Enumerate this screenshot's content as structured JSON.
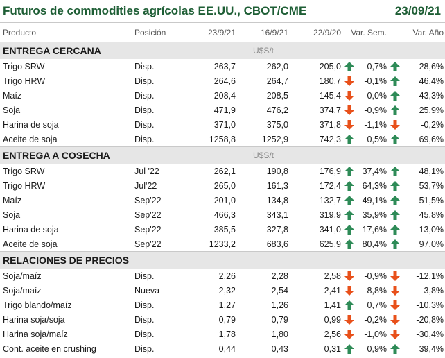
{
  "title": "Futuros de commodities agrícolas EE.UU., CBOT/CME",
  "date": "23/09/21",
  "columns": [
    "Producto",
    "Posición",
    "23/9/21",
    "16/9/21",
    "22/9/20",
    "Var. Sem.",
    "Var. Año"
  ],
  "colors": {
    "title": "#1e5e35",
    "up": "#2e8b57",
    "down": "#e8501a",
    "section_bg": "#e6e6e6"
  },
  "sections": [
    {
      "label": "ENTREGA CERCANA",
      "unit": "U$S/t",
      "rows": [
        {
          "name": "Trigo SRW",
          "pos": "Disp.",
          "v1": "263,7",
          "v2": "262,0",
          "v3": "205,0",
          "a1": "up",
          "wk": "0,7%",
          "a2": "up",
          "yr": "28,6%"
        },
        {
          "name": "Trigo HRW",
          "pos": "Disp.",
          "v1": "264,6",
          "v2": "264,7",
          "v3": "180,7",
          "a1": "down",
          "wk": "-0,1%",
          "a2": "up",
          "yr": "46,4%"
        },
        {
          "name": "Maíz",
          "pos": "Disp.",
          "v1": "208,4",
          "v2": "208,5",
          "v3": "145,4",
          "a1": "down",
          "wk": "0,0%",
          "a2": "up",
          "yr": "43,3%"
        },
        {
          "name": "Soja",
          "pos": "Disp.",
          "v1": "471,9",
          "v2": "476,2",
          "v3": "374,7",
          "a1": "down",
          "wk": "-0,9%",
          "a2": "up",
          "yr": "25,9%"
        },
        {
          "name": "Harina de soja",
          "pos": "Disp.",
          "v1": "371,0",
          "v2": "375,0",
          "v3": "371,8",
          "a1": "down",
          "wk": "-1,1%",
          "a2": "down",
          "yr": "-0,2%"
        },
        {
          "name": "Aceite de soja",
          "pos": "Disp.",
          "v1": "1258,8",
          "v2": "1252,9",
          "v3": "742,3",
          "a1": "up",
          "wk": "0,5%",
          "a2": "up",
          "yr": "69,6%"
        }
      ]
    },
    {
      "label": "ENTREGA A COSECHA",
      "unit": "U$S/t",
      "rows": [
        {
          "name": "Trigo SRW",
          "pos": "Jul '22",
          "v1": "262,1",
          "v2": "190,8",
          "v3": "176,9",
          "a1": "up",
          "wk": "37,4%",
          "a2": "up",
          "yr": "48,1%"
        },
        {
          "name": "Trigo HRW",
          "pos": "Jul'22",
          "v1": "265,0",
          "v2": "161,3",
          "v3": "172,4",
          "a1": "up",
          "wk": "64,3%",
          "a2": "up",
          "yr": "53,7%"
        },
        {
          "name": "Maíz",
          "pos": "Sep'22",
          "v1": "201,0",
          "v2": "134,8",
          "v3": "132,7",
          "a1": "up",
          "wk": "49,1%",
          "a2": "up",
          "yr": "51,5%"
        },
        {
          "name": "Soja",
          "pos": "Sep'22",
          "v1": "466,3",
          "v2": "343,1",
          "v3": "319,9",
          "a1": "up",
          "wk": "35,9%",
          "a2": "up",
          "yr": "45,8%"
        },
        {
          "name": "Harina de soja",
          "pos": "Sep'22",
          "v1": "385,5",
          "v2": "327,8",
          "v3": "341,0",
          "a1": "up",
          "wk": "17,6%",
          "a2": "up",
          "yr": "13,0%"
        },
        {
          "name": "Aceite de soja",
          "pos": "Sep'22",
          "v1": "1233,2",
          "v2": "683,6",
          "v3": "625,9",
          "a1": "up",
          "wk": "80,4%",
          "a2": "up",
          "yr": "97,0%"
        }
      ]
    },
    {
      "label": "RELACIONES DE PRECIOS",
      "unit": "",
      "rows": [
        {
          "name": "Soja/maíz",
          "pos": "Disp.",
          "v1": "2,26",
          "v2": "2,28",
          "v3": "2,58",
          "a1": "down",
          "wk": "-0,9%",
          "a2": "down",
          "yr": "-12,1%"
        },
        {
          "name": "Soja/maíz",
          "pos": "Nueva",
          "v1": "2,32",
          "v2": "2,54",
          "v3": "2,41",
          "a1": "down",
          "wk": "-8,8%",
          "a2": "down",
          "yr": "-3,8%"
        },
        {
          "name": "Trigo blando/maíz",
          "pos": "Disp.",
          "v1": "1,27",
          "v2": "1,26",
          "v3": "1,41",
          "a1": "up",
          "wk": "0,7%",
          "a2": "down",
          "yr": "-10,3%"
        },
        {
          "name": "Harina soja/soja",
          "pos": "Disp.",
          "v1": "0,79",
          "v2": "0,79",
          "v3": "0,99",
          "a1": "down",
          "wk": "-0,2%",
          "a2": "down",
          "yr": "-20,8%"
        },
        {
          "name": "Harina soja/maíz",
          "pos": "Disp.",
          "v1": "1,78",
          "v2": "1,80",
          "v3": "2,56",
          "a1": "down",
          "wk": "-1,0%",
          "a2": "down",
          "yr": "-30,4%"
        },
        {
          "name": "Cont. aceite en crushing",
          "pos": "Disp.",
          "v1": "0,44",
          "v2": "0,43",
          "v3": "0,31",
          "a1": "up",
          "wk": "0,9%",
          "a2": "up",
          "yr": "39,4%"
        }
      ]
    }
  ]
}
